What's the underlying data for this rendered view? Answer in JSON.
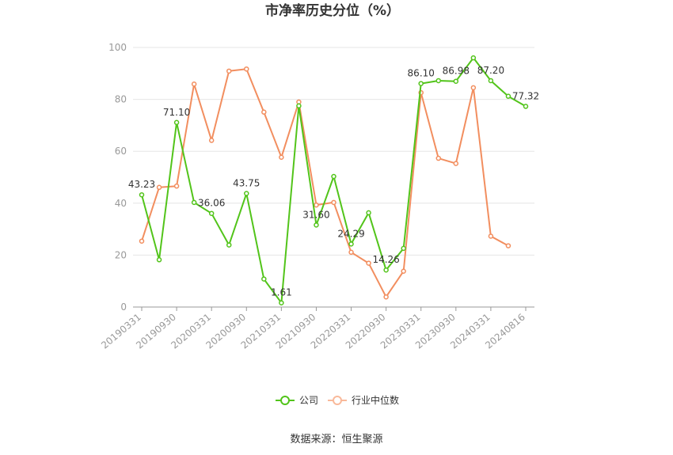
{
  "chart_data": {
    "type": "line",
    "title": "市净率历史分位（%）",
    "source": "数据来源：恒生聚源",
    "ylim": [
      0,
      100
    ],
    "yticks": [
      0,
      20,
      40,
      60,
      80,
      100
    ],
    "grid": true,
    "legend_position": "bottom",
    "x": [
      "20190331",
      "20190630",
      "20190930",
      "20191231",
      "20200331",
      "20200630",
      "20200930",
      "20201231",
      "20210331",
      "20210630",
      "20210930",
      "20211231",
      "20220331",
      "20220630",
      "20220930",
      "20221231",
      "20230331",
      "20230630",
      "20230930",
      "20231231",
      "20240331",
      "20240630",
      "20240816"
    ],
    "x_tick_labels": [
      "20190331",
      "20190930",
      "20200331",
      "20200930",
      "20210331",
      "20210930",
      "20220331",
      "20220930",
      "20230331",
      "20230930",
      "20240331",
      "20240816"
    ],
    "series": [
      {
        "name": "公司",
        "color": "#52c41a",
        "values": [
          43.23,
          18.2,
          71.1,
          40.3,
          36.06,
          23.9,
          43.75,
          10.8,
          1.61,
          77.5,
          31.6,
          50.3,
          24.29,
          36.3,
          14.26,
          22.6,
          86.1,
          87.2,
          86.98,
          96.0,
          87.2,
          81.2,
          77.32
        ],
        "labels": [
          "43.23",
          "",
          "71.10",
          "",
          "36.06",
          "",
          "43.75",
          "",
          "1.61",
          "",
          "31.60",
          "",
          "24.29",
          "",
          "14.26",
          "",
          "86.10",
          "",
          "86.98",
          "",
          "87.20",
          "",
          "77.32"
        ]
      },
      {
        "name": "行业中位数",
        "color": "#f28e5f",
        "values": [
          25.4,
          46.1,
          46.6,
          85.9,
          64.2,
          90.9,
          91.7,
          75.1,
          57.7,
          79.0,
          39.3,
          40.3,
          21.1,
          16.9,
          3.9,
          13.8,
          82.6,
          57.3,
          55.3,
          84.5,
          27.3,
          23.6,
          null
        ]
      }
    ]
  }
}
